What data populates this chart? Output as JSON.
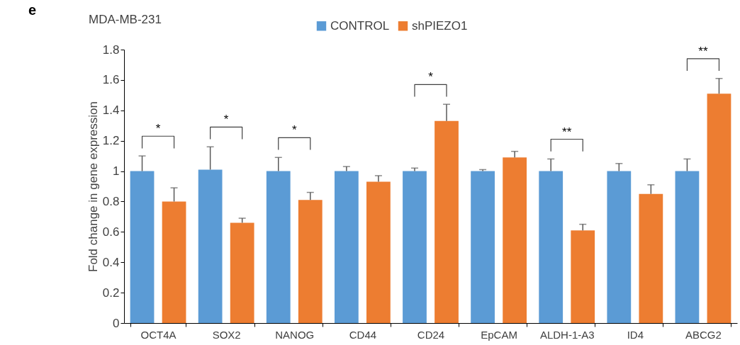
{
  "chart_data": {
    "type": "bar",
    "title": "MDA-MB-231",
    "ylabel": "Fold change in gene expression",
    "categories": [
      "OCT4A",
      "SOX2",
      "NANOG",
      "CD44",
      "CD24",
      "EpCAM",
      "ALDH-1-A3",
      "ID4",
      "ABCG2"
    ],
    "series": [
      {
        "name": "CONTROL",
        "color": "#5b9bd5",
        "values": [
          1.0,
          1.01,
          1.0,
          1.0,
          1.0,
          1.0,
          1.0,
          1.0,
          1.0
        ],
        "errors": [
          [
            1.0,
            1.1
          ],
          [
            1.01,
            1.16
          ],
          [
            1.0,
            1.09
          ],
          [
            1.0,
            1.03
          ],
          [
            1.0,
            1.02
          ],
          [
            1.0,
            1.01
          ],
          [
            1.0,
            1.08
          ],
          [
            1.0,
            1.05
          ],
          [
            1.0,
            1.08
          ]
        ]
      },
      {
        "name": "shPIEZO1",
        "color": "#ed7d31",
        "values": [
          0.8,
          0.66,
          0.81,
          0.93,
          1.33,
          1.09,
          0.61,
          0.85,
          1.51
        ],
        "errors": [
          [
            0.8,
            0.89
          ],
          [
            0.66,
            0.69
          ],
          [
            0.81,
            0.86
          ],
          [
            0.93,
            0.97
          ],
          [
            1.33,
            1.44
          ],
          [
            1.09,
            1.13
          ],
          [
            0.61,
            0.65
          ],
          [
            0.85,
            0.91
          ],
          [
            1.51,
            1.61
          ]
        ]
      }
    ],
    "ylim": [
      0,
      1.8
    ],
    "yticks": [
      0,
      0.2,
      0.4,
      0.6,
      0.8,
      1,
      1.2,
      1.4,
      1.6,
      1.8
    ],
    "grid": false,
    "legend": "top",
    "annotations": [
      "e",
      "*",
      "*",
      "*",
      "*",
      "**",
      "**"
    ]
  }
}
